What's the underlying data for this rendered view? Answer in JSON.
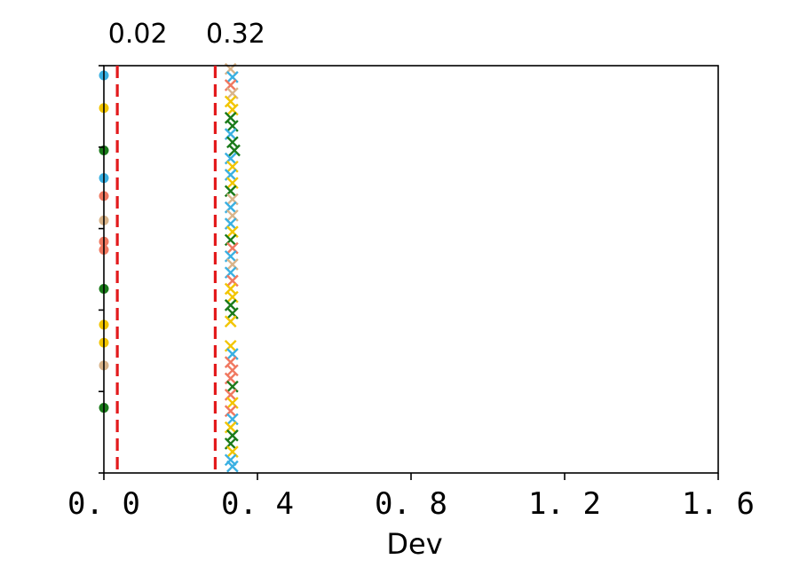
{
  "chart_data": {
    "type": "scatter",
    "title": "",
    "xlabel": "Dev",
    "ylabel": "",
    "xlim": [
      0,
      1.6
    ],
    "ylim": [
      0,
      50
    ],
    "x_ticks": [
      "0. 0",
      "0. 4",
      "0. 8",
      "1. 2",
      "1. 6"
    ],
    "x_tick_values": [
      0.0,
      0.4,
      0.8,
      1.2,
      1.6
    ],
    "y_tick_values": [
      0,
      10,
      20,
      30,
      40,
      50
    ],
    "grid": false,
    "legend": "none",
    "reference_lines": [
      {
        "x": 0.035,
        "label": "0.02",
        "color": "#e31a1c",
        "style": "dashed"
      },
      {
        "x": 0.29,
        "label": "0.32",
        "color": "#e31a1c",
        "style": "dashed"
      }
    ],
    "colors": {
      "blue": "#3ab0e2",
      "yellow": "#f2c500",
      "green": "#1a7a1a",
      "salmon": "#f07860",
      "tan": "#d9b48a",
      "reference": "#e31a1c"
    },
    "series": [
      {
        "marker": "circle",
        "points": [
          {
            "x": 0.0,
            "y": 48.8,
            "color": "blue"
          },
          {
            "x": 0.0,
            "y": 44.8,
            "color": "yellow"
          },
          {
            "x": 0.0,
            "y": 39.6,
            "color": "green"
          },
          {
            "x": 0.0,
            "y": 36.2,
            "color": "blue"
          },
          {
            "x": 0.0,
            "y": 34.0,
            "color": "salmon"
          },
          {
            "x": 0.0,
            "y": 31.0,
            "color": "tan"
          },
          {
            "x": 0.0,
            "y": 28.4,
            "color": "salmon"
          },
          {
            "x": 0.0,
            "y": 27.4,
            "color": "salmon"
          },
          {
            "x": 0.0,
            "y": 22.6,
            "color": "green"
          },
          {
            "x": 0.0,
            "y": 18.2,
            "color": "yellow"
          },
          {
            "x": 0.0,
            "y": 16.0,
            "color": "yellow"
          },
          {
            "x": 0.0,
            "y": 13.2,
            "color": "tan"
          },
          {
            "x": 0.0,
            "y": 8.0,
            "color": "green"
          }
        ]
      },
      {
        "marker": "x",
        "points": [
          {
            "x": 0.33,
            "y": 49.6,
            "color": "tan"
          },
          {
            "x": 0.335,
            "y": 48.6,
            "color": "blue"
          },
          {
            "x": 0.33,
            "y": 47.6,
            "color": "salmon"
          },
          {
            "x": 0.335,
            "y": 46.6,
            "color": "tan"
          },
          {
            "x": 0.33,
            "y": 45.6,
            "color": "yellow"
          },
          {
            "x": 0.335,
            "y": 44.6,
            "color": "yellow"
          },
          {
            "x": 0.33,
            "y": 43.6,
            "color": "green"
          },
          {
            "x": 0.335,
            "y": 42.6,
            "color": "green"
          },
          {
            "x": 0.33,
            "y": 41.6,
            "color": "blue"
          },
          {
            "x": 0.335,
            "y": 40.6,
            "color": "green"
          },
          {
            "x": 0.34,
            "y": 39.6,
            "color": "green"
          },
          {
            "x": 0.33,
            "y": 38.6,
            "color": "blue"
          },
          {
            "x": 0.335,
            "y": 37.6,
            "color": "yellow"
          },
          {
            "x": 0.33,
            "y": 36.6,
            "color": "blue"
          },
          {
            "x": 0.335,
            "y": 35.6,
            "color": "yellow"
          },
          {
            "x": 0.33,
            "y": 34.6,
            "color": "green"
          },
          {
            "x": 0.335,
            "y": 33.6,
            "color": "tan"
          },
          {
            "x": 0.33,
            "y": 32.6,
            "color": "blue"
          },
          {
            "x": 0.335,
            "y": 31.6,
            "color": "tan"
          },
          {
            "x": 0.33,
            "y": 30.6,
            "color": "blue"
          },
          {
            "x": 0.335,
            "y": 29.6,
            "color": "yellow"
          },
          {
            "x": 0.33,
            "y": 28.6,
            "color": "green"
          },
          {
            "x": 0.335,
            "y": 27.6,
            "color": "salmon"
          },
          {
            "x": 0.33,
            "y": 26.6,
            "color": "blue"
          },
          {
            "x": 0.335,
            "y": 25.6,
            "color": "tan"
          },
          {
            "x": 0.33,
            "y": 24.6,
            "color": "blue"
          },
          {
            "x": 0.335,
            "y": 23.6,
            "color": "salmon"
          },
          {
            "x": 0.33,
            "y": 22.6,
            "color": "yellow"
          },
          {
            "x": 0.335,
            "y": 21.6,
            "color": "yellow"
          },
          {
            "x": 0.33,
            "y": 20.6,
            "color": "green"
          },
          {
            "x": 0.335,
            "y": 19.6,
            "color": "green"
          },
          {
            "x": 0.33,
            "y": 18.6,
            "color": "yellow"
          },
          {
            "x": 0.33,
            "y": 15.6,
            "color": "yellow"
          },
          {
            "x": 0.335,
            "y": 14.6,
            "color": "blue"
          },
          {
            "x": 0.33,
            "y": 13.6,
            "color": "salmon"
          },
          {
            "x": 0.335,
            "y": 12.6,
            "color": "salmon"
          },
          {
            "x": 0.33,
            "y": 11.6,
            "color": "salmon"
          },
          {
            "x": 0.335,
            "y": 10.6,
            "color": "green"
          },
          {
            "x": 0.33,
            "y": 9.6,
            "color": "salmon"
          },
          {
            "x": 0.335,
            "y": 8.6,
            "color": "yellow"
          },
          {
            "x": 0.33,
            "y": 7.6,
            "color": "salmon"
          },
          {
            "x": 0.335,
            "y": 6.6,
            "color": "blue"
          },
          {
            "x": 0.33,
            "y": 5.6,
            "color": "yellow"
          },
          {
            "x": 0.335,
            "y": 4.6,
            "color": "green"
          },
          {
            "x": 0.33,
            "y": 3.6,
            "color": "green"
          },
          {
            "x": 0.335,
            "y": 2.6,
            "color": "yellow"
          },
          {
            "x": 0.33,
            "y": 1.6,
            "color": "blue"
          },
          {
            "x": 0.335,
            "y": 0.8,
            "color": "blue"
          }
        ]
      }
    ]
  }
}
